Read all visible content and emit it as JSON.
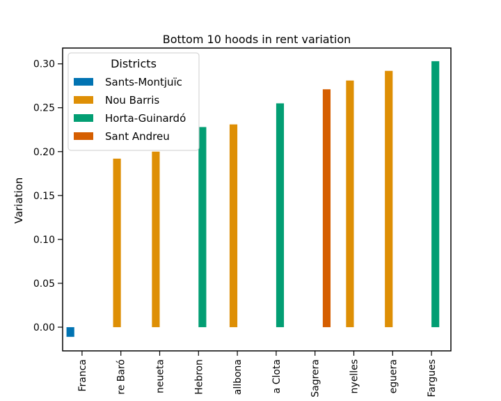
{
  "chart_data": {
    "type": "bar",
    "title": "Bottom 10 hoods in rent variation",
    "xlabel": "",
    "ylabel": "Variation",
    "ylim": [
      -0.027,
      0.318
    ],
    "yticks": [
      "0.00",
      "0.05",
      "0.10",
      "0.15",
      "0.20",
      "0.25",
      "0.30"
    ],
    "categories": [
      "Franca",
      "re Baró",
      "neueta",
      "Hebron",
      "allbona",
      "a Clota",
      "Sagrera",
      "nyelles",
      "eguera",
      "Fargues"
    ],
    "legend": {
      "title": "Districts",
      "placement": "upper-left",
      "entries": [
        {
          "name": "Sants-Montjuïc",
          "color": "#0173b2"
        },
        {
          "name": "Nou Barris",
          "color": "#de8f05"
        },
        {
          "name": "Horta-Guinardó",
          "color": "#029e73"
        },
        {
          "name": "Sant Andreu",
          "color": "#d55e00"
        }
      ]
    },
    "bars": [
      {
        "category": "Franca",
        "district": "Sants-Montjuïc",
        "value": -0.011
      },
      {
        "category": "re Baró",
        "district": "Nou Barris",
        "value": 0.192
      },
      {
        "category": "neueta",
        "district": "Nou Barris",
        "value": 0.2
      },
      {
        "category": "Hebron",
        "district": "Horta-Guinardó",
        "value": 0.228
      },
      {
        "category": "allbona",
        "district": "Nou Barris",
        "value": 0.231
      },
      {
        "category": "a Clota",
        "district": "Horta-Guinardó",
        "value": 0.255
      },
      {
        "category": "Sagrera",
        "district": "Sant Andreu",
        "value": 0.271
      },
      {
        "category": "nyelles",
        "district": "Nou Barris",
        "value": 0.281
      },
      {
        "category": "eguera",
        "district": "Nou Barris",
        "value": 0.292
      },
      {
        "category": "Fargues",
        "district": "Horta-Guinardó",
        "value": 0.303
      }
    ],
    "grid": false
  }
}
